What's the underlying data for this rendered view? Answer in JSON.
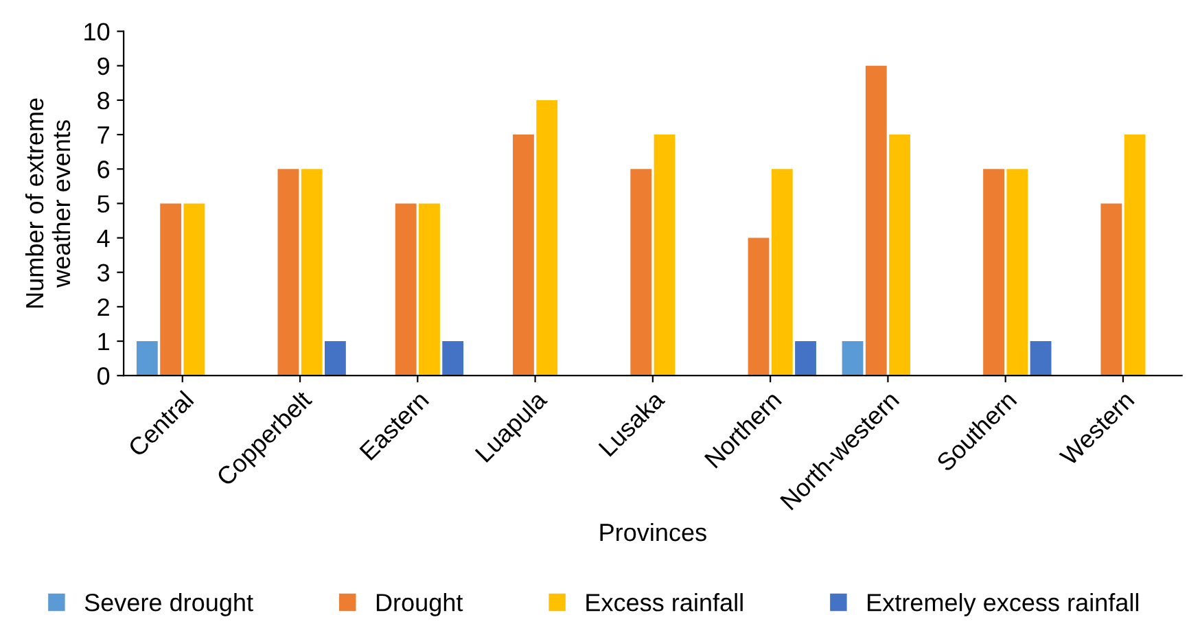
{
  "chart_data": {
    "type": "bar",
    "xlabel": "Provinces",
    "ylabel": "Number of extreme\nweather events",
    "categories": [
      "Central",
      "Copperbelt",
      "Eastern",
      "Luapula",
      "Lusaka",
      "Northern",
      "North-western",
      "Southern",
      "Western"
    ],
    "series": [
      {
        "name": "Severe drought",
        "color": "#5b9bd5",
        "values": [
          1,
          0,
          0,
          0,
          0,
          0,
          1,
          0,
          0
        ]
      },
      {
        "name": "Drought",
        "color": "#ed7d31",
        "values": [
          5,
          6,
          5,
          7,
          6,
          4,
          9,
          6,
          5
        ]
      },
      {
        "name": "Excess rainfall",
        "color": "#ffc000",
        "values": [
          5,
          6,
          5,
          8,
          7,
          6,
          7,
          6,
          7
        ]
      },
      {
        "name": "Extremely excess rainfall",
        "color": "#4472c4",
        "values": [
          0,
          1,
          1,
          0,
          0,
          1,
          0,
          1,
          0
        ]
      }
    ],
    "ylim": [
      0,
      10
    ],
    "yticks": [
      0,
      1,
      2,
      3,
      4,
      5,
      6,
      7,
      8,
      9,
      10
    ],
    "grid": false,
    "legend": "bottom"
  }
}
